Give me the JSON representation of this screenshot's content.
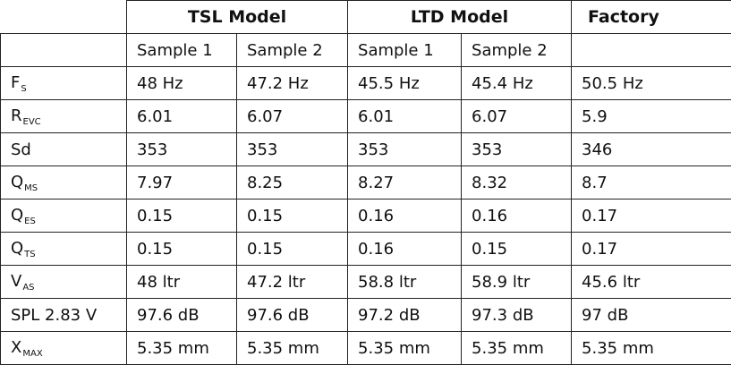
{
  "headers": {
    "groups": [
      "TSL Model",
      "LTD Model",
      "Factory"
    ],
    "samples": [
      "Sample 1",
      "Sample 2",
      "Sample 1",
      "Sample 2"
    ]
  },
  "rows": [
    {
      "param": "F",
      "sub": "S",
      "values": [
        "48 Hz",
        "47.2 Hz",
        "45.5 Hz",
        "45.4 Hz",
        "50.5 Hz"
      ]
    },
    {
      "param": "R",
      "sub": "EVC",
      "values": [
        "6.01",
        "6.07",
        "6.01",
        "6.07",
        "5.9"
      ]
    },
    {
      "param": "Sd",
      "sub": "",
      "values": [
        "353",
        "353",
        "353",
        "353",
        "346"
      ]
    },
    {
      "param": "Q",
      "sub": "MS",
      "values": [
        "7.97",
        "8.25",
        "8.27",
        "8.32",
        "8.7"
      ]
    },
    {
      "param": "Q",
      "sub": "ES",
      "values": [
        "0.15",
        "0.15",
        "0.16",
        "0.16",
        "0.17"
      ]
    },
    {
      "param": "Q",
      "sub": "TS",
      "values": [
        "0.15",
        "0.15",
        "0.16",
        "0.15",
        "0.17"
      ]
    },
    {
      "param": "V",
      "sub": "AS",
      "values": [
        "48 ltr",
        "47.2 ltr",
        "58.8 ltr",
        "58.9 ltr",
        "45.6 ltr"
      ]
    },
    {
      "param": "SPL 2.83 V",
      "sub": "",
      "values": [
        "97.6 dB",
        "97.6 dB",
        "97.2 dB",
        "97.3 dB",
        "97 dB"
      ]
    },
    {
      "param": "X",
      "sub": "MAX",
      "values": [
        "5.35 mm",
        "5.35 mm",
        "5.35 mm",
        "5.35 mm",
        "5.35 mm"
      ]
    }
  ]
}
